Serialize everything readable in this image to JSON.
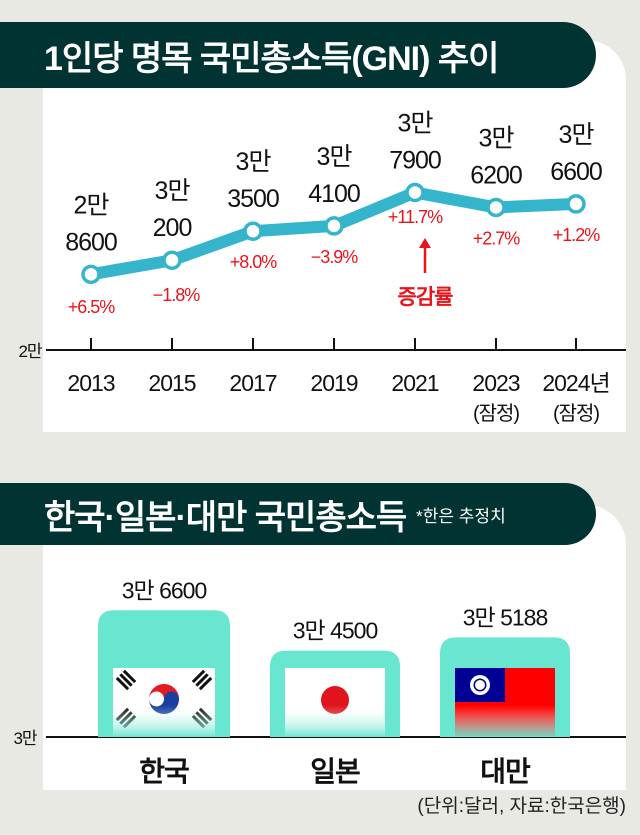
{
  "chart_data": [
    {
      "type": "line",
      "title": "1인당 명목 국민총소득(GNI) 추이",
      "categories": [
        "2013",
        "2015",
        "2017",
        "2019",
        "2021",
        "2023",
        "2024년"
      ],
      "category_notes": [
        "",
        "",
        "",
        "",
        "",
        "(잠정)",
        "(잠정)"
      ],
      "values": [
        28600,
        30200,
        33500,
        34100,
        37900,
        36200,
        36600
      ],
      "value_labels": [
        [
          "2만",
          "8600"
        ],
        [
          "3만",
          "200"
        ],
        [
          "3만",
          "3500"
        ],
        [
          "3만",
          "4100"
        ],
        [
          "3만",
          "7900"
        ],
        [
          "3만",
          "6200"
        ],
        [
          "3만",
          "6600"
        ]
      ],
      "change_labels": [
        "+6.5%",
        "−1.8%",
        "+8.0%",
        "−3.9%",
        "+11.7%",
        "+2.7%",
        "+1.2%"
      ],
      "annotation": "증감률",
      "y_base_label": "2만",
      "ylim": [
        20000,
        40000
      ],
      "line_color": "#35b5cc",
      "change_color": "#e8141b"
    },
    {
      "type": "bar",
      "title": "한국·일본·대만 국민총소득",
      "note": "*한은 추정치",
      "categories": [
        "한국",
        "일본",
        "대만"
      ],
      "values": [
        36600,
        34500,
        35188
      ],
      "value_labels": [
        "3만 6600",
        "3만 4500",
        "3만 5188"
      ],
      "flags": [
        "south-korea-flag",
        "japan-flag",
        "taiwan-flag"
      ],
      "y_base_label": "3만",
      "ylim": [
        30000,
        37000
      ],
      "bar_color": "#69e6d0"
    }
  ],
  "source": "(단위:달러, 자료:한국은행)"
}
